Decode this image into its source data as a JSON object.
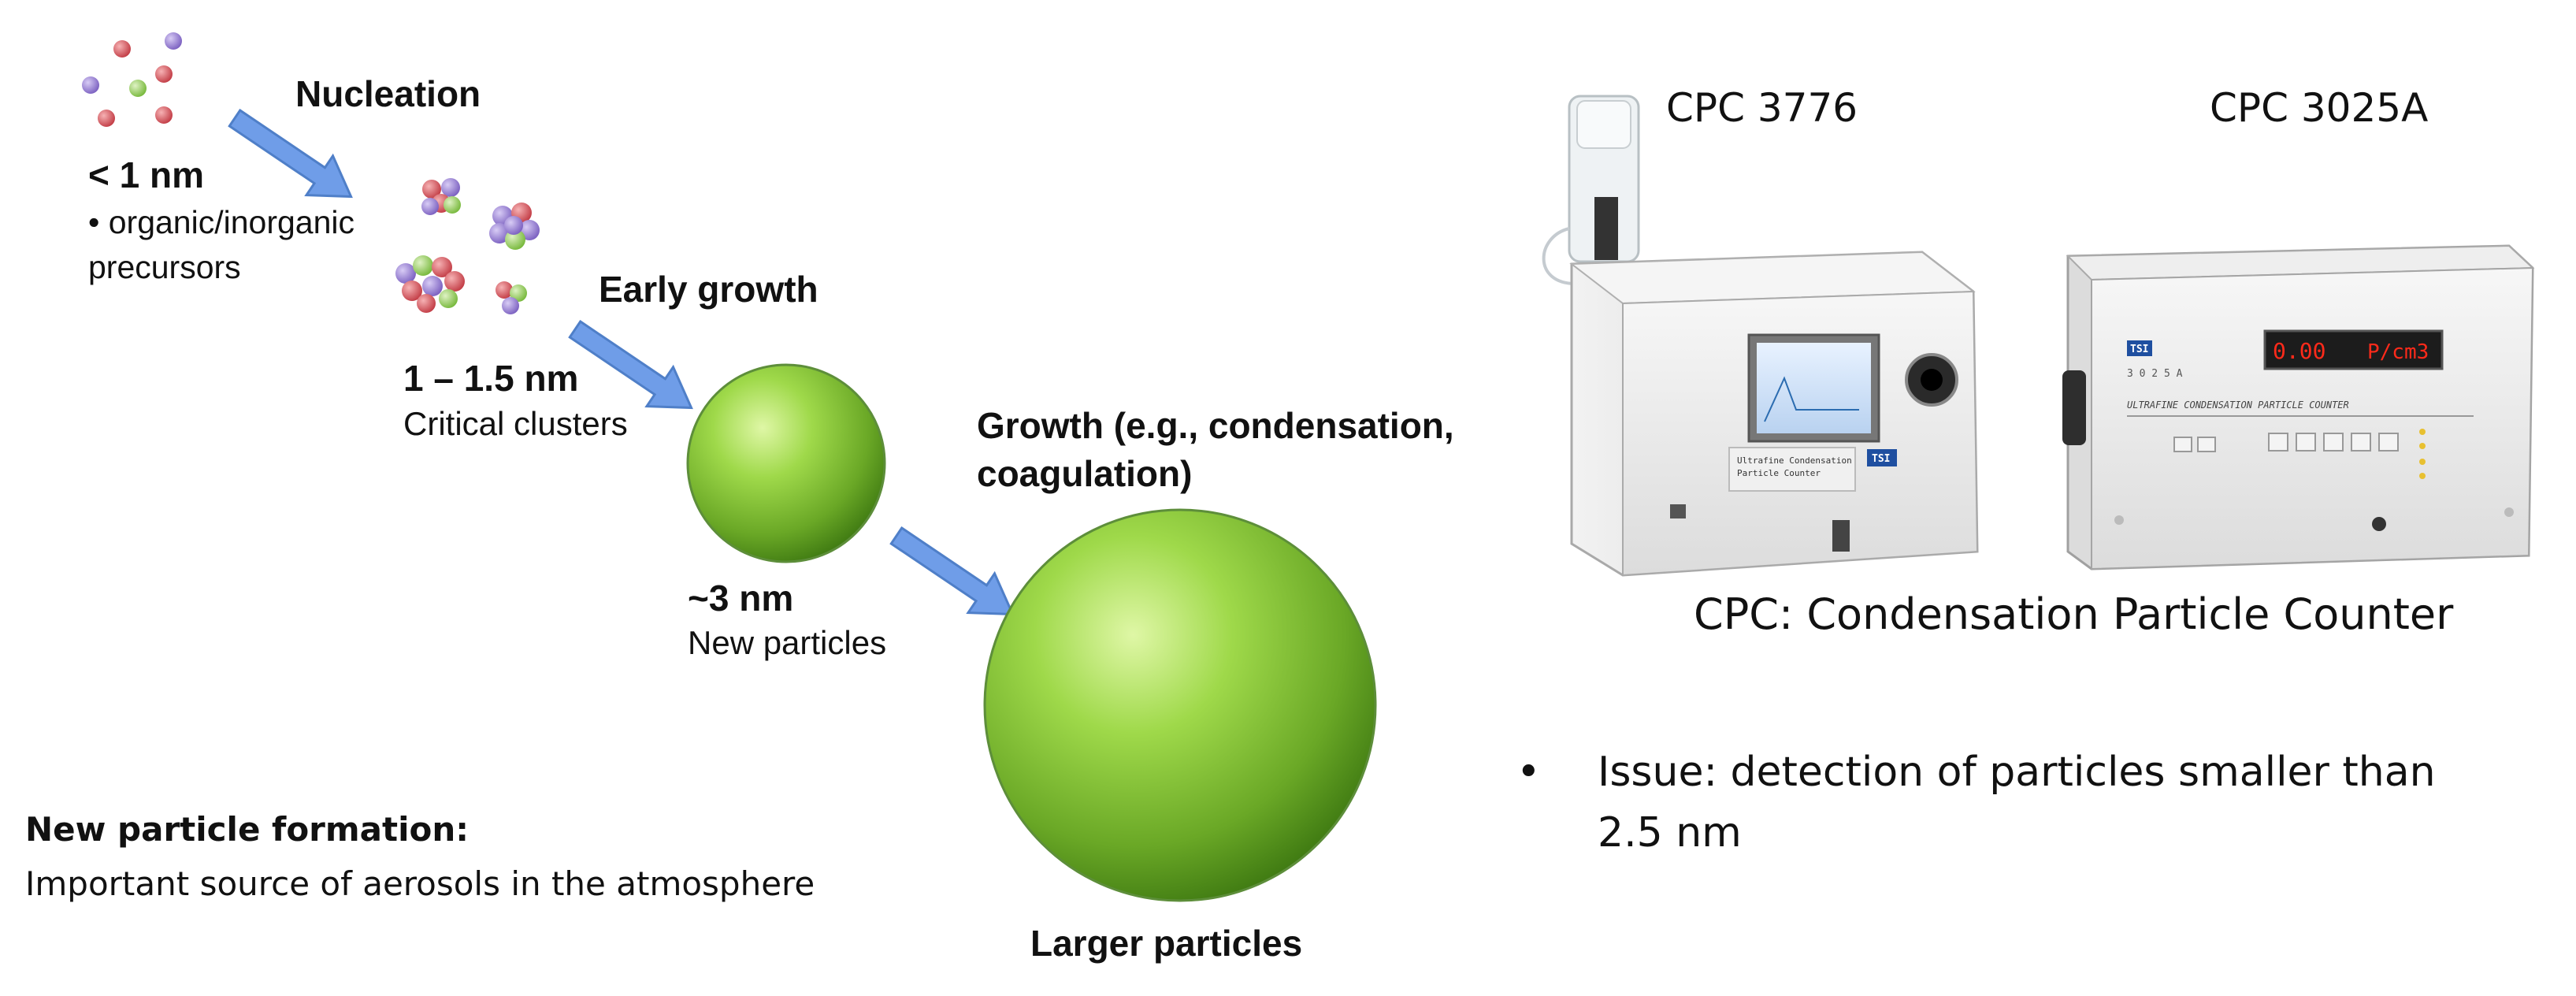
{
  "diagram": {
    "stages": [
      {
        "label": "Nucleation",
        "size": "< 1 nm",
        "desc": [
          "• organic/inorganic",
          "precursors"
        ]
      },
      {
        "label": "Early growth",
        "size": "1 – 1.5 nm",
        "desc": [
          "Critical clusters"
        ]
      },
      {
        "label": "",
        "size": "~3 nm",
        "desc": [
          "New particles"
        ]
      },
      {
        "label": "Growth (e.g., condensation,",
        "label_2": "coagulation)",
        "size": "",
        "desc": []
      },
      {
        "label": "Larger particles"
      }
    ],
    "summary": {
      "title": "New particle formation:",
      "text": "Important source of aerosols in the atmosphere"
    }
  },
  "instruments": {
    "cpc_1": "CPC 3776",
    "cpc_2": "CPC 3025A",
    "caption": "CPC: Condensation Particle Counter",
    "display_value": "0.00",
    "display_unit": "P/cm3",
    "brand": "TSI",
    "model_code": "3 0 2 5 A",
    "panel_title": "ULTRAFINE CONDENSATION PARTICLE COUNTER",
    "screen_label_1": "Ultrafine Condensation",
    "screen_label_2": "Particle Counter"
  },
  "issue": {
    "bullet": "•",
    "line_1": "Issue:  detection of particles smaller than",
    "line_2": "2.5 nm"
  },
  "colors": {
    "arrow": "#6f9de8",
    "arrow_stroke": "#4f7fc8",
    "sphere_light": "#d9f59b",
    "sphere_mid": "#8fcf3a",
    "sphere_dark": "#3f7a12",
    "molecule_red": "#d9585e",
    "molecule_purple": "#9a7fd6",
    "molecule_green": "#98d460",
    "display_red": "#ff2a1a"
  }
}
